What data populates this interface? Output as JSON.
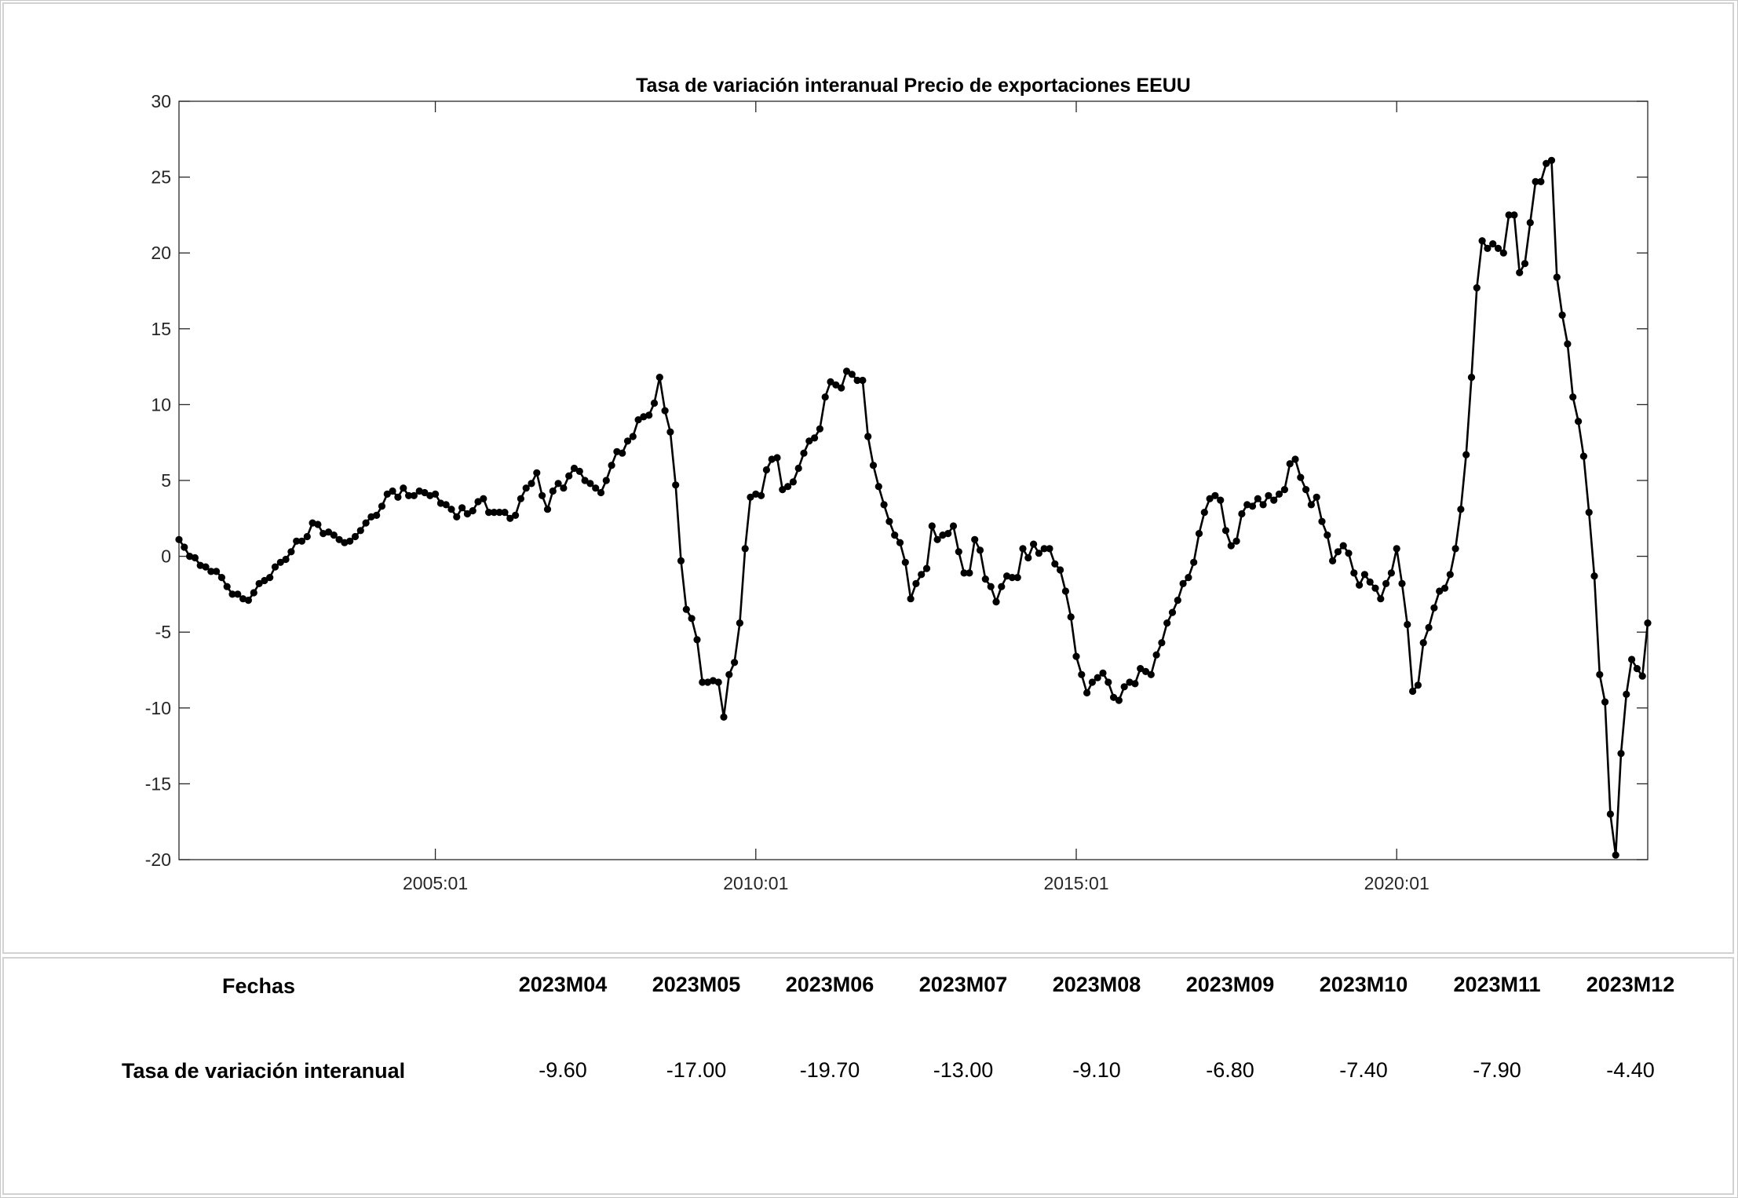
{
  "chart_data": {
    "type": "line",
    "title": "Tasa de variación interanual Precio de exportaciones EEUU",
    "xlabel": "",
    "ylabel": "",
    "ylim": [
      -20,
      30
    ],
    "yticks": [
      "30",
      "25",
      "20",
      "15",
      "10",
      "5",
      "0",
      "-5",
      "-10",
      "-15",
      "-20"
    ],
    "ytick_values": [
      30,
      25,
      20,
      15,
      10,
      5,
      0,
      -5,
      -10,
      -15,
      -20
    ],
    "xticks": [
      "2005:01",
      "2010:01",
      "2015:01",
      "2020:01"
    ],
    "xtick_positions": [
      "2005-01",
      "2010-01",
      "2015-01",
      "2020-01"
    ],
    "x_start": "2001-01",
    "x_end": "2023-12",
    "grid": false,
    "marker": "circle",
    "line_color": "#000000",
    "series": [
      {
        "name": "",
        "values": [
          1.1,
          0.6,
          0.0,
          -0.1,
          -0.6,
          -0.7,
          -1.0,
          -1.0,
          -1.4,
          -2.0,
          -2.5,
          -2.5,
          -2.8,
          -2.9,
          -2.4,
          -1.8,
          -1.6,
          -1.4,
          -0.7,
          -0.4,
          -0.2,
          0.3,
          1.0,
          1.0,
          1.3,
          2.2,
          2.1,
          1.5,
          1.6,
          1.4,
          1.1,
          0.9,
          1.0,
          1.3,
          1.7,
          2.2,
          2.6,
          2.7,
          3.3,
          4.1,
          4.3,
          3.9,
          4.5,
          4.0,
          4.0,
          4.3,
          4.2,
          4.0,
          4.1,
          3.5,
          3.4,
          3.1,
          2.6,
          3.2,
          2.8,
          3.0,
          3.6,
          3.8,
          2.9,
          2.9,
          2.9,
          2.9,
          2.5,
          2.7,
          3.8,
          4.5,
          4.8,
          5.5,
          4.0,
          3.1,
          4.3,
          4.8,
          4.5,
          5.3,
          5.8,
          5.6,
          5.0,
          4.8,
          4.5,
          4.2,
          5.0,
          6.0,
          6.9,
          6.8,
          7.6,
          7.9,
          9.0,
          9.2,
          9.3,
          10.1,
          11.8,
          9.6,
          8.2,
          4.7,
          -0.3,
          -3.5,
          -4.1,
          -5.5,
          -8.3,
          -8.3,
          -8.2,
          -8.3,
          -10.6,
          -7.8,
          -7.0,
          -4.4,
          0.5,
          3.9,
          4.1,
          4.0,
          5.7,
          6.4,
          6.5,
          4.4,
          4.6,
          4.9,
          5.8,
          6.8,
          7.6,
          7.8,
          8.4,
          10.5,
          11.5,
          11.3,
          11.1,
          12.2,
          12.0,
          11.6,
          11.6,
          7.9,
          6.0,
          4.6,
          3.4,
          2.3,
          1.4,
          0.9,
          -0.4,
          -2.8,
          -1.8,
          -1.2,
          -0.8,
          2.0,
          1.1,
          1.4,
          1.5,
          2.0,
          0.3,
          -1.1,
          -1.1,
          1.1,
          0.4,
          -1.5,
          -2.0,
          -3.0,
          -2.0,
          -1.3,
          -1.4,
          -1.4,
          0.5,
          -0.1,
          0.8,
          0.2,
          0.5,
          0.5,
          -0.5,
          -0.9,
          -2.3,
          -4.0,
          -6.6,
          -7.8,
          -9.0,
          -8.3,
          -8.0,
          -7.7,
          -8.3,
          -9.3,
          -9.5,
          -8.6,
          -8.3,
          -8.4,
          -7.4,
          -7.6,
          -7.8,
          -6.5,
          -5.7,
          -4.4,
          -3.7,
          -2.9,
          -1.8,
          -1.4,
          -0.4,
          1.5,
          2.9,
          3.8,
          4.0,
          3.7,
          1.7,
          0.7,
          1.0,
          2.8,
          3.4,
          3.3,
          3.8,
          3.4,
          4.0,
          3.7,
          4.1,
          4.4,
          6.1,
          6.4,
          5.2,
          4.4,
          3.4,
          3.9,
          2.3,
          1.4,
          -0.3,
          0.3,
          0.7,
          0.2,
          -1.1,
          -1.9,
          -1.2,
          -1.7,
          -2.1,
          -2.8,
          -1.8,
          -1.1,
          0.5,
          -1.8,
          -4.5,
          -8.9,
          -8.5,
          -5.7,
          -4.7,
          -3.4,
          -2.3,
          -2.1,
          -1.2,
          0.5,
          3.1,
          6.7,
          11.8,
          17.7,
          20.8,
          20.3,
          20.6,
          20.3,
          20.0,
          22.5,
          22.5,
          18.7,
          19.3,
          22.0,
          24.7,
          24.7,
          25.9,
          26.1,
          18.4,
          15.9,
          14.0,
          10.5,
          8.9,
          6.6,
          2.9,
          -1.3,
          -7.8,
          -9.6,
          -17.0,
          -19.7,
          -13.0,
          -9.1,
          -6.8,
          -7.4,
          -7.9,
          -4.4
        ]
      }
    ]
  },
  "table": {
    "row1_label": "Fechas",
    "row2_label": "Tasa de variación interanual",
    "dates": [
      "2023M04",
      "2023M05",
      "2023M06",
      "2023M07",
      "2023M08",
      "2023M09",
      "2023M10",
      "2023M11",
      "2023M12"
    ],
    "values": [
      "-9.60",
      "-17.00",
      "-19.70",
      "-13.00",
      "-9.10",
      "-6.80",
      "-7.40",
      "-7.90",
      "-4.40"
    ]
  }
}
